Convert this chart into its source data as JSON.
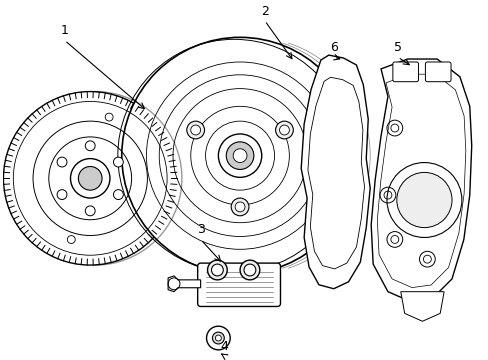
{
  "background_color": "#ffffff",
  "line_color": "#000000",
  "line_width": 1.0,
  "label_fontsize": 9,
  "fig_width": 4.89,
  "fig_height": 3.6
}
